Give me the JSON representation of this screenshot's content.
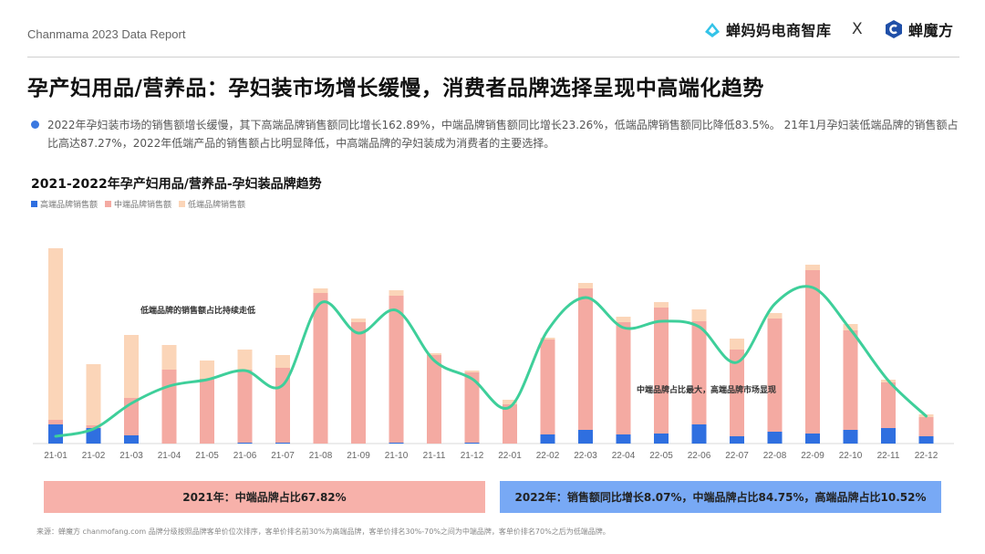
{
  "header": {
    "report_label": "Chanmama 2023 Data Report",
    "brand_left": "蝉妈妈电商智库",
    "brand_separator": "X",
    "brand_right": "蝉魔方"
  },
  "headline": "孕产妇用品/营养品：孕妇装市场增长缓慢，消费者品牌选择呈现中高端化趋势",
  "summary": "2022年孕妇装市场的销售额增长缓慢，其下高端品牌销售额同比增长162.89%，中端品牌销售额同比增长23.26%，低端品牌销售额同比降低83.5%。 21年1月孕妇装低端品牌的销售额占比高达87.27%，2022年低端产品的销售额占比明显降低，中高端品牌的孕妇装成为消费者的主要选择。",
  "annotations": {
    "left": "低端品牌的销售额占比持续走低",
    "right": "中端品牌占比最大，高端品牌市场显现"
  },
  "boxes": {
    "y2021": "2021年：中端品牌占比67.82%",
    "y2022": "2022年：销售额同比增长8.07%，中端品牌占比84.75%，高端品牌占比10.52%"
  },
  "footnote": "来源：蝉魔方 chanmofang.com 品牌分级按照品牌客单价位次排序，客单价排名前30%为高端品牌，客单价排名30%-70%之间为中端品牌，客单价排名70%之后为低端品牌。",
  "colors": {
    "high": "#2f6fe0",
    "mid": "#f4aaa2",
    "low": "#fbd5b8",
    "line": "#3ecf9a"
  },
  "chart_data": {
    "type": "bar",
    "stacked": true,
    "title": "2021-2022年孕产妇用品/营养品-孕妇装品牌趋势",
    "xlabel": "",
    "ylabel": "",
    "legend_position": "top-left",
    "grid": false,
    "categories": [
      "21-01",
      "21-02",
      "21-03",
      "21-04",
      "21-05",
      "21-06",
      "21-07",
      "21-08",
      "21-09",
      "21-10",
      "21-11",
      "21-12",
      "22-01",
      "22-02",
      "22-03",
      "22-04",
      "22-05",
      "22-06",
      "22-07",
      "22-08",
      "22-09",
      "22-10",
      "22-11",
      "22-12"
    ],
    "series": [
      {
        "name": "高端品牌销售额",
        "values": [
          21,
          17,
          9,
          0,
          0,
          1,
          1,
          0,
          0,
          1,
          0,
          1,
          0,
          10,
          15,
          10,
          11,
          21,
          8,
          13,
          11,
          15,
          17,
          8
        ]
      },
      {
        "name": "中端品牌销售额",
        "values": [
          5,
          3,
          41,
          81,
          71,
          80,
          82,
          165,
          133,
          161,
          97,
          77,
          43,
          104,
          155,
          123,
          138,
          113,
          95,
          124,
          179,
          109,
          50,
          21
        ]
      },
      {
        "name": "低端品牌销售额",
        "values": [
          188,
          67,
          69,
          27,
          20,
          22,
          14,
          5,
          4,
          6,
          2,
          2,
          5,
          2,
          6,
          6,
          6,
          13,
          12,
          6,
          6,
          7,
          3,
          3
        ]
      }
    ],
    "trend_line": [
      8,
      16,
      44,
      63,
      70,
      80,
      64,
      154,
      121,
      146,
      91,
      71,
      40,
      124,
      160,
      127,
      134,
      128,
      89,
      153,
      171,
      125,
      69,
      30
    ]
  }
}
